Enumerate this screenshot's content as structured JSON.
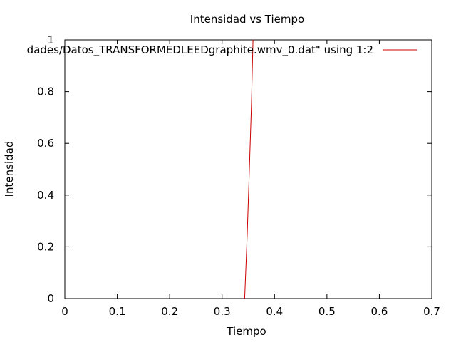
{
  "chart_data": {
    "type": "line",
    "title": "Intensidad vs Tiempo",
    "xlabel": "Tiempo",
    "ylabel": "Intensidad",
    "xlim": [
      0,
      0.7
    ],
    "ylim": [
      0,
      1
    ],
    "x_ticks": [
      "0",
      "0.1",
      "0.2",
      "0.3",
      "0.4",
      "0.5",
      "0.6",
      "0.7"
    ],
    "y_ticks": [
      "0",
      "0.2",
      "0.4",
      "0.6",
      "0.8",
      "1"
    ],
    "grid": false,
    "legend_position": "top-right",
    "series": [
      {
        "name": "dades/Datos_TRANSFORMEDLEEDgraphite.wmv_0.dat\" using 1:2",
        "color": "#cc0000",
        "x": [
          0.343,
          0.348,
          0.352,
          0.356,
          0.359
        ],
        "y": [
          0,
          0.25,
          0.5,
          0.75,
          1
        ]
      }
    ]
  }
}
